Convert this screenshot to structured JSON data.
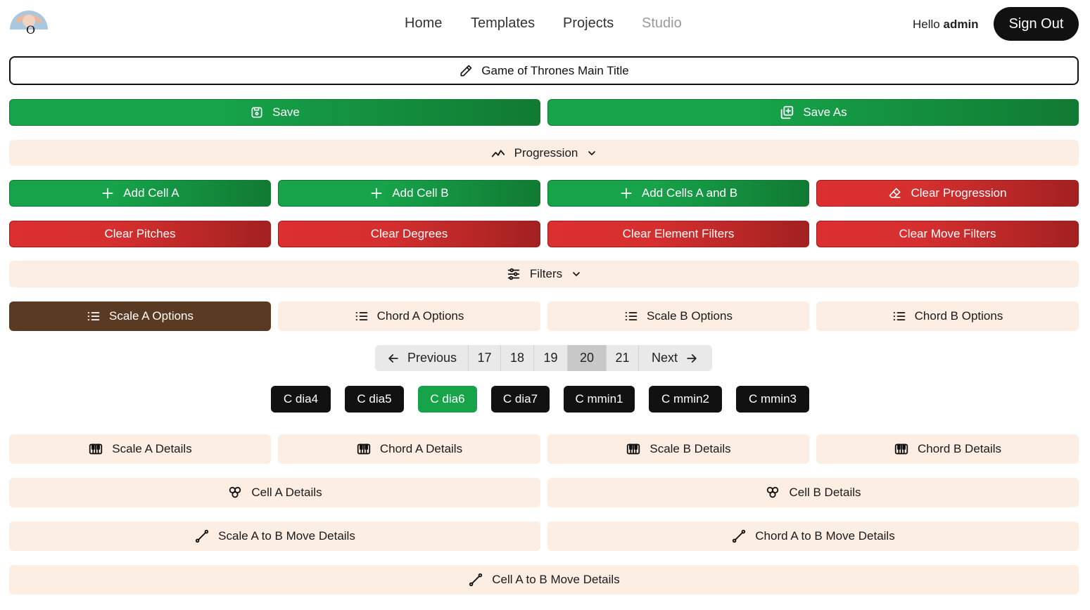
{
  "header": {
    "logo_letter": "O",
    "nav": [
      {
        "label": "Home"
      },
      {
        "label": "Templates"
      },
      {
        "label": "Projects"
      },
      {
        "label": "Studio"
      }
    ],
    "greeting_prefix": "Hello",
    "username": "admin",
    "signout_label": "Sign Out"
  },
  "title": "Game of Thrones Main Title",
  "save_label": "Save",
  "save_as_label": "Save As",
  "progression_label": "Progression",
  "progression_actions": [
    "Add Cell A",
    "Add Cell B",
    "Add Cells A and B",
    "Clear Progression"
  ],
  "clear_actions": [
    "Clear Pitches",
    "Clear Degrees",
    "Clear Element Filters",
    "Clear Move Filters"
  ],
  "filters_label": "Filters",
  "option_tabs": [
    "Scale A Options",
    "Chord A Options",
    "Scale B Options",
    "Chord B Options"
  ],
  "pagination": {
    "previous": "Previous",
    "pages": [
      "17",
      "18",
      "19",
      "20",
      "21"
    ],
    "current": "20",
    "next": "Next"
  },
  "chips": [
    "C dia4",
    "C dia5",
    "C dia6",
    "C dia7",
    "C mmin1",
    "C mmin2",
    "C mmin3"
  ],
  "selected_chip": "C dia6",
  "detail_tabs": [
    "Scale A Details",
    "Chord A Details",
    "Scale B Details",
    "Chord B Details"
  ],
  "cell_details": [
    "Cell A Details",
    "Cell B Details"
  ],
  "move_details": [
    "Scale A to B Move Details",
    "Chord A to B Move Details"
  ],
  "cell_move_details": "Cell A to B Move Details",
  "colors": {
    "green": "#16a34a",
    "red": "#dc2f2f",
    "peach": "#fdeee3",
    "brown": "#5a3a22",
    "dark": "#111111"
  }
}
